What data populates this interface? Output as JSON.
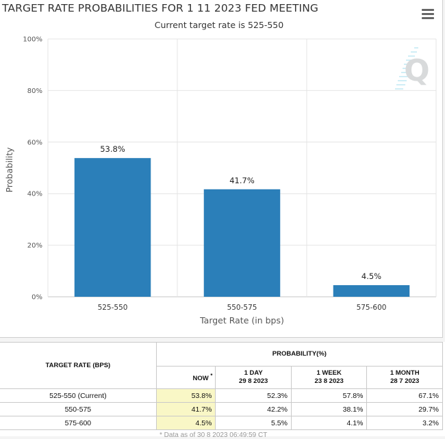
{
  "header": {
    "title": "TARGET RATE PROBABILITIES FOR 1 11 2023 FED MEETING",
    "subtitle": "Current target rate is 525-550"
  },
  "icons": {
    "menu": "hamburger-menu-icon",
    "watermark": "q-logo-icon"
  },
  "colors": {
    "bar": "#2b7fb9",
    "highlight": "#f9f7c6",
    "watermark": "#8ed6ea"
  },
  "chart_data": {
    "type": "bar",
    "title": "TARGET RATE PROBABILITIES FOR 1 11 2023 FED MEETING",
    "subtitle": "Current target rate is 525-550",
    "categories": [
      "525-550",
      "550-575",
      "575-600"
    ],
    "values": [
      53.8,
      41.7,
      4.5
    ],
    "data_labels": [
      "53.8%",
      "41.7%",
      "4.5%"
    ],
    "xlabel": "Target Rate (in bps)",
    "ylabel": "Probability",
    "ylim": [
      0,
      100
    ],
    "yticks": [
      0,
      20,
      40,
      60,
      80,
      100
    ],
    "ytick_labels": [
      "0%",
      "20%",
      "40%",
      "60%",
      "80%",
      "100%"
    ],
    "grid": true,
    "legend": "none"
  },
  "table": {
    "rate_header": "TARGET RATE (BPS)",
    "prob_header": "PROBABILITY(%)",
    "columns": [
      {
        "label": "NOW",
        "marker": "*",
        "date": ""
      },
      {
        "label": "1 DAY",
        "date": "29 8 2023"
      },
      {
        "label": "1 WEEK",
        "date": "23 8 2023"
      },
      {
        "label": "1 MONTH",
        "date": "28 7 2023"
      }
    ],
    "rows": [
      {
        "rate": "525-550 (Current)",
        "values": [
          "53.8%",
          "52.3%",
          "57.8%",
          "67.1%"
        ]
      },
      {
        "rate": "550-575",
        "values": [
          "41.7%",
          "42.2%",
          "38.1%",
          "29.7%"
        ]
      },
      {
        "rate": "575-600",
        "values": [
          "4.5%",
          "5.5%",
          "4.1%",
          "3.2%"
        ]
      }
    ],
    "footnote": "* Data as of 30 8 2023 06:49:59 CT"
  }
}
